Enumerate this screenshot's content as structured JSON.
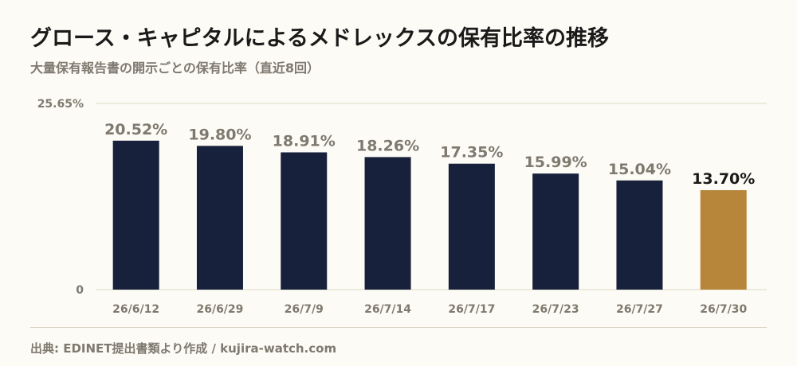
{
  "header": {
    "title": "グロース・キャピタルによるメドレックスの保有比率の推移",
    "subtitle": "大量保有報告書の開示ごとの保有比率（直近8回）"
  },
  "footer": {
    "source": "出典: EDINET提出書類より作成 / kujira-watch.com"
  },
  "colors": {
    "bar": "#17213b",
    "highlight_bar": "#b8863b",
    "label": "#7f7a70",
    "highlight_label": "#1a1a1a",
    "grid": "#ddd8c8",
    "background": "#fdfbf5"
  },
  "chart_data": {
    "type": "bar",
    "categories": [
      "26/6/12",
      "26/6/29",
      "26/7/9",
      "26/7/14",
      "26/7/17",
      "26/7/23",
      "26/7/27",
      "26/7/30"
    ],
    "values": [
      20.52,
      19.8,
      18.91,
      18.26,
      17.35,
      15.99,
      15.04,
      13.7
    ],
    "value_labels": [
      "20.52%",
      "19.80%",
      "18.91%",
      "18.26%",
      "17.35%",
      "15.99%",
      "15.04%",
      "13.70%"
    ],
    "highlight_index": 7,
    "ylim": [
      0,
      25.65
    ],
    "yticks": [
      0,
      25.65
    ],
    "ytick_labels": [
      "0",
      "25.65%"
    ],
    "grid": true,
    "legend": false
  }
}
